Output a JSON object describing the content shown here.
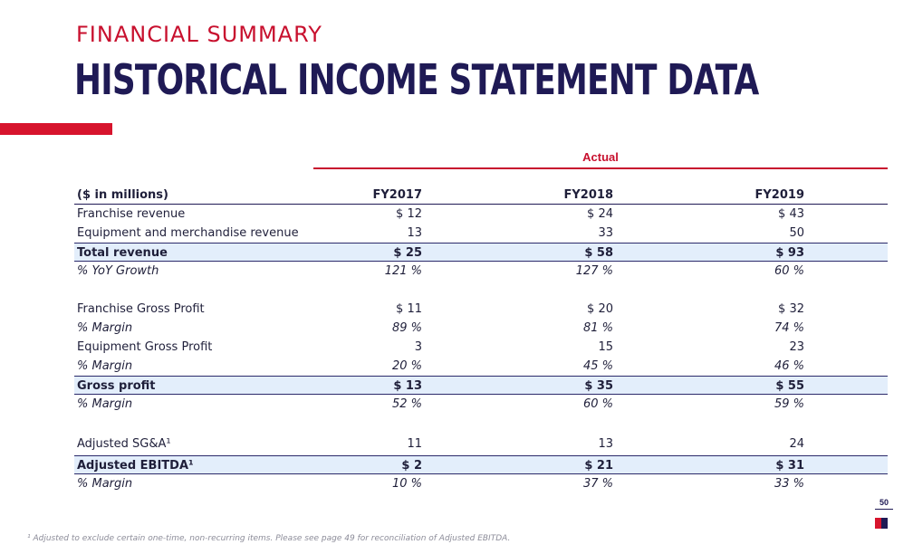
{
  "header": {
    "kicker": "FINANCIAL SUMMARY",
    "title": "HISTORICAL INCOME STATEMENT DATA"
  },
  "table": {
    "group_label": "Actual",
    "columns": [
      "($ in millions)",
      "FY2017",
      "FY2018",
      "FY2019"
    ],
    "rows": [
      {
        "label": "Franchise revenue",
        "v": [
          "$ 12",
          "$ 24",
          "$ 43"
        ]
      },
      {
        "label": "Equipment and merchandise revenue",
        "v": [
          "13",
          "33",
          "50"
        ]
      },
      {
        "label": "Total revenue",
        "v": [
          "$ 25",
          "$ 58",
          "$ 93"
        ]
      },
      {
        "label": "% YoY Growth",
        "v": [
          "121 %",
          "127 %",
          "60 %"
        ]
      },
      {
        "label": "Franchise Gross Profit",
        "v": [
          "$ 11",
          "$ 20",
          "$ 32"
        ]
      },
      {
        "label": "% Margin",
        "v": [
          "89 %",
          "81 %",
          "74 %"
        ]
      },
      {
        "label": "Equipment Gross Profit",
        "v": [
          "3",
          "15",
          "23"
        ]
      },
      {
        "label": "% Margin",
        "v": [
          "20 %",
          "45 %",
          "46 %"
        ]
      },
      {
        "label": "Gross profit",
        "v": [
          "$ 13",
          "$ 35",
          "$ 55"
        ]
      },
      {
        "label": "% Margin",
        "v": [
          "52 %",
          "60 %",
          "59 %"
        ]
      },
      {
        "label": "Adjusted SG&A¹",
        "v": [
          "11",
          "13",
          "24"
        ]
      },
      {
        "label": "Adjusted EBITDA¹",
        "v": [
          "$ 2",
          "$ 21",
          "$ 31"
        ]
      },
      {
        "label": "% Margin",
        "v": [
          "10 %",
          "37 %",
          "33 %"
        ]
      }
    ]
  },
  "page_number": "50",
  "footnote": "¹ Adjusted to exclude certain one-time, non-recurring items. Please see page 49 for reconciliation of Adjusted EBITDA.",
  "colors": {
    "accent_red": "#c8102e",
    "navy": "#1f1a55",
    "highlight": "#e3eefb"
  }
}
